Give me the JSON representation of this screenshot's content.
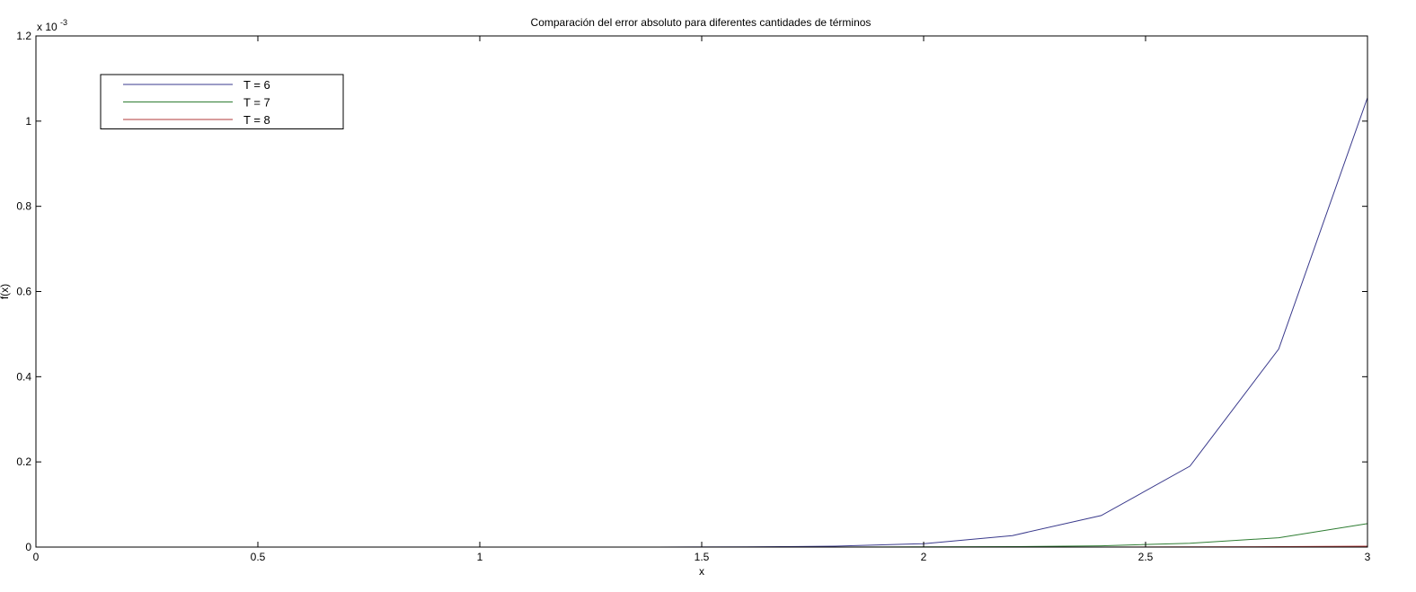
{
  "chart_data": {
    "type": "line",
    "title": "Comparación del error absoluto para diferentes cantidades de términos",
    "xlabel": "x",
    "ylabel": "f(x)",
    "y_multiplier_base": "x 10",
    "y_multiplier_exponent": "-3",
    "xlim": [
      0,
      3
    ],
    "ylim": [
      0,
      1.2
    ],
    "x_ticks": [
      0,
      0.5,
      1,
      1.5,
      2,
      2.5,
      3
    ],
    "x_tick_labels": [
      "0",
      "0.5",
      "1",
      "1.5",
      "2",
      "2.5",
      "3"
    ],
    "y_ticks": [
      0,
      0.2,
      0.4,
      0.6,
      0.8,
      1.0,
      1.2
    ],
    "y_tick_labels": [
      "0",
      "0.2",
      "0.4",
      "0.6",
      "0.8",
      "1",
      "1.2"
    ],
    "grid": false,
    "legend_position": "top-left",
    "x": [
      0,
      0.2,
      0.4,
      0.6,
      0.8,
      1.0,
      1.2,
      1.4,
      1.6,
      1.8,
      2.0,
      2.2,
      2.4,
      2.6,
      2.8,
      3.0
    ],
    "series": [
      {
        "name": "T = 6",
        "color": "#3a3a8c",
        "values": [
          0,
          0,
          0,
          0,
          0,
          0,
          0,
          0,
          0.0005,
          0.002,
          0.008,
          0.027,
          0.074,
          0.19,
          0.465,
          1.055
        ]
      },
      {
        "name": "T = 7",
        "color": "#2e7d32",
        "values": [
          0,
          0,
          0,
          0,
          0,
          0,
          0,
          0,
          0,
          0,
          0.0005,
          0.001,
          0.003,
          0.009,
          0.022,
          0.055
        ]
      },
      {
        "name": "T = 8",
        "color": "#b23a3a",
        "values": [
          0,
          0,
          0,
          0,
          0,
          0,
          0,
          0,
          0,
          0,
          0,
          0,
          0,
          0.0005,
          0.001,
          0.002
        ]
      }
    ]
  }
}
